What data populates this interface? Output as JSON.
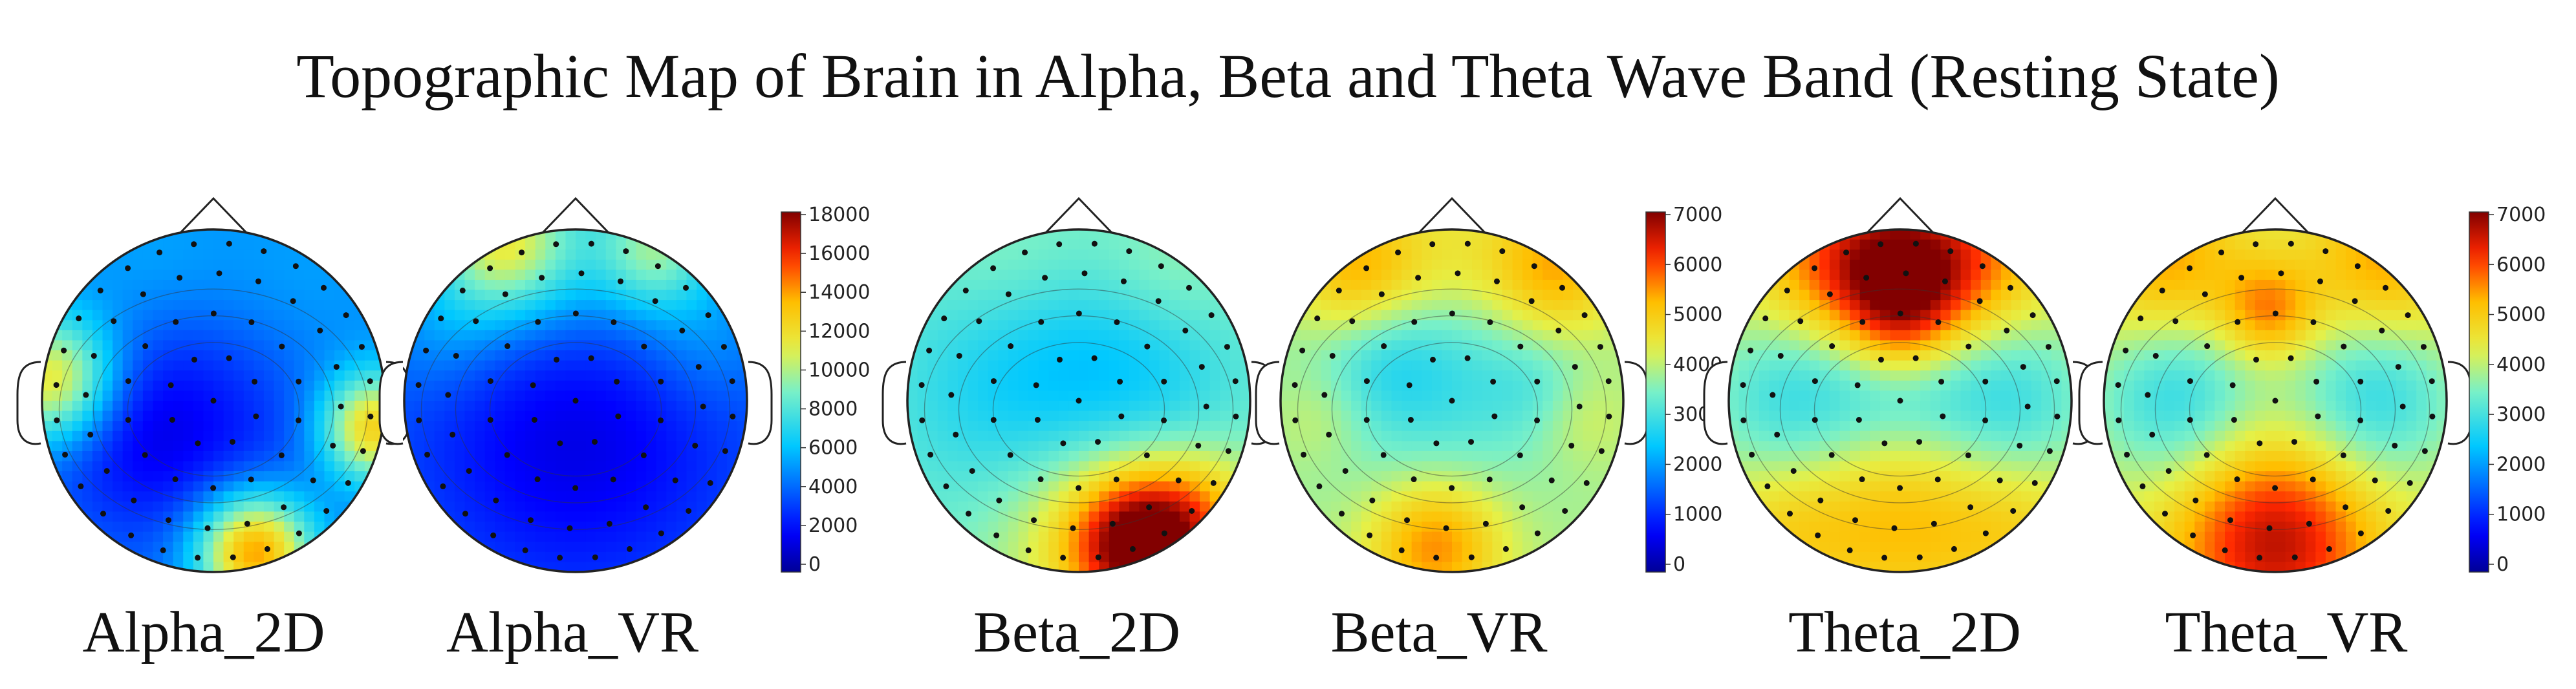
{
  "title": "Topographic Map of Brain in Alpha, Beta and Theta Wave Band (Resting State)",
  "groups": [
    {
      "id": "alpha",
      "maps": [
        {
          "label": "Alpha_2D",
          "base": 0.27,
          "hotspots": [
            [
              0.03,
              0.44,
              0.13,
              0.42
            ],
            [
              0.97,
              0.58,
              0.11,
              0.45
            ],
            [
              0.62,
              0.94,
              0.12,
              0.55
            ],
            [
              0.3,
              0.12,
              0.18,
              0.06
            ],
            [
              0.72,
              0.2,
              0.22,
              0.06
            ]
          ],
          "lows": [
            [
              0.45,
              0.55,
              0.3,
              0.14
            ],
            [
              0.25,
              0.6,
              0.18,
              0.07
            ]
          ]
        },
        {
          "label": "Alpha_VR",
          "base": 0.24,
          "hotspots": [
            [
              0.28,
              0.04,
              0.14,
              0.35
            ],
            [
              0.74,
              0.06,
              0.12,
              0.26
            ],
            [
              0.5,
              0.08,
              0.22,
              0.12
            ],
            [
              0.12,
              0.3,
              0.14,
              0.08
            ],
            [
              0.88,
              0.32,
              0.14,
              0.08
            ]
          ],
          "lows": [
            [
              0.5,
              0.6,
              0.34,
              0.16
            ]
          ]
        }
      ],
      "colorbar": {
        "ticks": [
          "18000",
          "16000",
          "14000",
          "12000",
          "10000",
          "8000",
          "6000",
          "4000",
          "2000",
          "0"
        ]
      }
    },
    {
      "id": "beta",
      "maps": [
        {
          "label": "Beta_2D",
          "base": 0.5,
          "hotspots": [
            [
              0.7,
              0.92,
              0.14,
              0.5
            ],
            [
              0.55,
              0.88,
              0.22,
              0.18
            ],
            [
              0.88,
              0.8,
              0.12,
              0.12
            ],
            [
              0.3,
              0.12,
              0.18,
              0.06
            ],
            [
              0.75,
              0.15,
              0.16,
              0.06
            ]
          ],
          "lows": [
            [
              0.38,
              0.45,
              0.28,
              0.16
            ],
            [
              0.72,
              0.42,
              0.2,
              0.08
            ]
          ]
        },
        {
          "label": "Beta_VR",
          "base": 0.56,
          "hotspots": [
            [
              0.22,
              0.12,
              0.14,
              0.22
            ],
            [
              0.8,
              0.12,
              0.14,
              0.22
            ],
            [
              0.5,
              0.08,
              0.16,
              0.1
            ],
            [
              0.45,
              0.92,
              0.14,
              0.25
            ],
            [
              0.12,
              0.55,
              0.1,
              0.06
            ],
            [
              0.88,
              0.55,
              0.1,
              0.06
            ]
          ],
          "lows": [
            [
              0.45,
              0.42,
              0.26,
              0.14
            ],
            [
              0.3,
              0.38,
              0.12,
              0.06
            ],
            [
              0.75,
              0.46,
              0.1,
              0.05
            ]
          ]
        }
      ],
      "colorbar": {
        "ticks": [
          "7000",
          "6000",
          "5000",
          "4000",
          "3000",
          "2000",
          "1000",
          "0"
        ]
      }
    },
    {
      "id": "theta",
      "maps": [
        {
          "label": "Theta_2D",
          "base": 0.6,
          "hotspots": [
            [
              0.5,
              0.14,
              0.15,
              0.35
            ],
            [
              0.28,
              0.1,
              0.18,
              0.18
            ],
            [
              0.72,
              0.1,
              0.18,
              0.18
            ],
            [
              0.5,
              0.78,
              0.24,
              0.18
            ],
            [
              0.5,
              0.3,
              0.1,
              0.1
            ],
            [
              0.15,
              0.85,
              0.14,
              0.08
            ],
            [
              0.85,
              0.85,
              0.14,
              0.08
            ]
          ],
          "lows": [
            [
              0.22,
              0.5,
              0.2,
              0.22
            ],
            [
              0.78,
              0.5,
              0.2,
              0.22
            ],
            [
              0.5,
              0.48,
              0.14,
              0.08
            ]
          ]
        },
        {
          "label": "Theta_VR",
          "base": 0.6,
          "hotspots": [
            [
              0.5,
              0.92,
              0.2,
              0.28
            ],
            [
              0.18,
              0.1,
              0.16,
              0.18
            ],
            [
              0.82,
              0.1,
              0.16,
              0.18
            ],
            [
              0.48,
              0.24,
              0.1,
              0.2
            ],
            [
              0.5,
              0.76,
              0.3,
              0.08
            ]
          ],
          "lows": [
            [
              0.22,
              0.5,
              0.18,
              0.22
            ],
            [
              0.78,
              0.5,
              0.18,
              0.22
            ]
          ]
        }
      ],
      "colorbar": {
        "ticks": [
          "7000",
          "6000",
          "5000",
          "4000",
          "3000",
          "2000",
          "1000",
          "0"
        ]
      }
    }
  ]
}
